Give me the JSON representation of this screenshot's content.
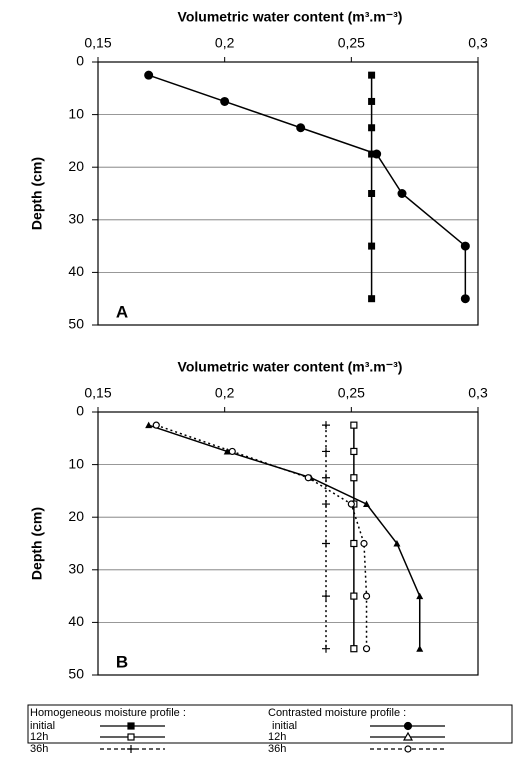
{
  "chart_data": [
    {
      "type": "line",
      "title": "Volumetric water content (m³.m⁻³)",
      "y_label": "Depth (cm)",
      "panel": "A",
      "xlim": [
        0.15,
        0.3
      ],
      "xticks": [
        {
          "value": 0.15,
          "label": "0,15"
        },
        {
          "value": 0.2,
          "label": "0,2"
        },
        {
          "value": 0.25,
          "label": "0,25"
        },
        {
          "value": 0.3,
          "label": "0,3"
        }
      ],
      "ylim": [
        0,
        50
      ],
      "yticks": [
        0,
        10,
        20,
        30,
        40,
        50
      ],
      "y_inverted": true,
      "grid": true,
      "series": [
        {
          "color": "#000",
          "marker": "square",
          "dash": false,
          "x": [
            0.258,
            0.258,
            0.258,
            0.258,
            0.258,
            0.258,
            0.258
          ],
          "y": [
            2.5,
            7.5,
            12.5,
            17.5,
            25,
            35,
            45
          ]
        },
        {
          "color": "#000",
          "marker": "circle",
          "dash": false,
          "x": [
            0.17,
            0.2,
            0.23,
            0.26,
            0.27,
            0.295,
            0.295
          ],
          "y": [
            2.5,
            7.5,
            12.5,
            17.5,
            25,
            35,
            45
          ]
        }
      ]
    },
    {
      "type": "line",
      "title": "Volumetric water content (m³.m⁻³)",
      "y_label": "Depth (cm)",
      "panel": "B",
      "xlim": [
        0.15,
        0.3
      ],
      "xticks": [
        {
          "value": 0.15,
          "label": "0,15"
        },
        {
          "value": 0.2,
          "label": "0,2"
        },
        {
          "value": 0.25,
          "label": "0,25"
        },
        {
          "value": 0.3,
          "label": "0,3"
        }
      ],
      "ylim": [
        0,
        50
      ],
      "yticks": [
        0,
        10,
        20,
        30,
        40,
        50
      ],
      "y_inverted": true,
      "grid": true,
      "series": [
        {
          "color": "#000",
          "marker": "plus",
          "dash": true,
          "x": [
            0.24,
            0.24,
            0.24,
            0.24,
            0.24,
            0.24,
            0.24
          ],
          "y": [
            2.5,
            7.5,
            12.5,
            17.5,
            25,
            35,
            45
          ]
        },
        {
          "color": "#000",
          "marker": "open-square",
          "dash": false,
          "x": [
            0.251,
            0.251,
            0.251,
            0.251,
            0.251,
            0.251,
            0.251
          ],
          "y": [
            2.5,
            7.5,
            12.5,
            17.5,
            25,
            35,
            45
          ]
        },
        {
          "color": "#000",
          "marker": "triangle",
          "dash": false,
          "x": [
            0.17,
            0.201,
            0.234,
            0.256,
            0.268,
            0.277,
            0.277
          ],
          "y": [
            2.5,
            7.5,
            12.5,
            17.5,
            25,
            35,
            45
          ]
        },
        {
          "color": "#000",
          "marker": "open-circle",
          "dash": true,
          "x": [
            0.173,
            0.203,
            0.233,
            0.25,
            0.255,
            0.256,
            0.256
          ],
          "y": [
            2.5,
            7.5,
            12.5,
            17.5,
            25,
            35,
            45
          ]
        }
      ]
    }
  ],
  "legend": {
    "groups": [
      {
        "title": "Homogeneous moisture profile :",
        "items": [
          "initial",
          "12h",
          "36h"
        ]
      },
      {
        "title": "Contrasted moisture profile :",
        "items": [
          "initial",
          "12h",
          "36h"
        ]
      }
    ]
  }
}
